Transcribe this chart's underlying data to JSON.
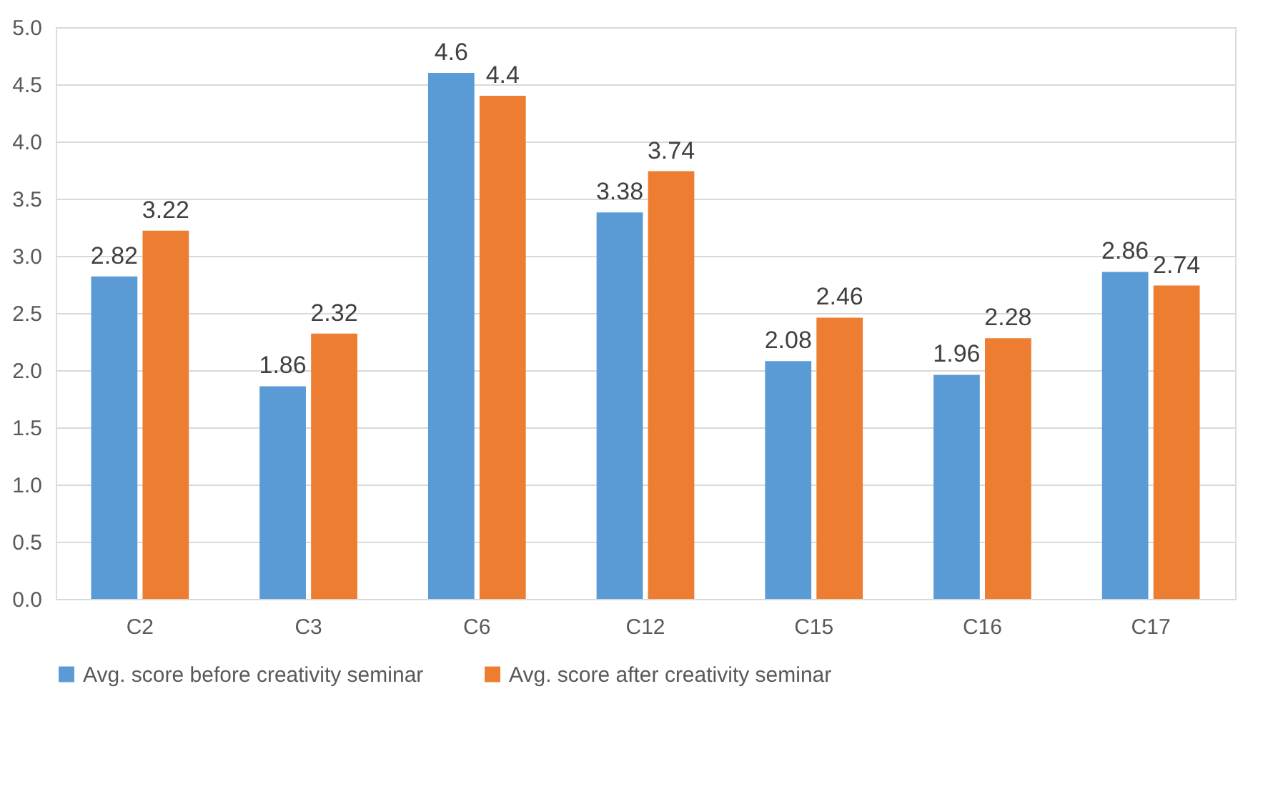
{
  "chart_data": {
    "type": "bar",
    "categories": [
      "C2",
      "C3",
      "C6",
      "C12",
      "C15",
      "C16",
      "C17"
    ],
    "series": [
      {
        "name": "Avg. score before creativity seminar",
        "color": "#5b9bd5",
        "values": [
          2.82,
          1.86,
          4.6,
          3.38,
          2.08,
          1.96,
          2.86
        ]
      },
      {
        "name": "Avg. score after creativity seminar",
        "color": "#ed7d31",
        "values": [
          3.22,
          2.32,
          4.4,
          3.74,
          2.46,
          2.28,
          2.74
        ]
      }
    ],
    "ylim": [
      0,
      5
    ],
    "yticks": [
      {
        "value": 0,
        "label": "0.0"
      },
      {
        "value": 0.5,
        "label": "0.5"
      },
      {
        "value": 1,
        "label": "1.0"
      },
      {
        "value": 1.5,
        "label": "1.5"
      },
      {
        "value": 2,
        "label": "2.0"
      },
      {
        "value": 2.5,
        "label": "2.5"
      },
      {
        "value": 3,
        "label": "3.0"
      },
      {
        "value": 3.5,
        "label": "3.5"
      },
      {
        "value": 4,
        "label": "4.0"
      },
      {
        "value": 4.5,
        "label": "4.5"
      },
      {
        "value": 5,
        "label": "5.0"
      }
    ],
    "grid": "y",
    "legend": "bottom",
    "data_labels": true
  }
}
